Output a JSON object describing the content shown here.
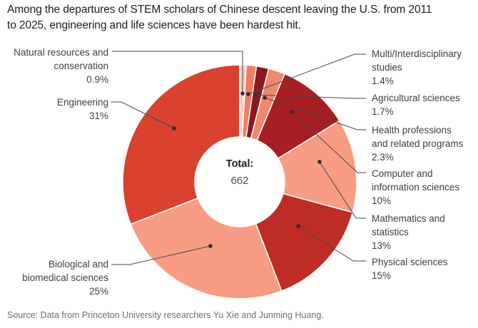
{
  "title_lines": [
    "Among the departures of STEM scholars of Chinese descent leaving the U.S. from 2011",
    "to 2025, engineering and life sciences have been hardest hit."
  ],
  "source": "Source: Data from Princeton University researchers Yu Xie and Junming Huang.",
  "colors": {
    "background": "#ffffff",
    "leader_line": "#4a4a4a",
    "dot": "#2f2f2f",
    "segment_separator": "#ffffff",
    "title_text": "#1d1d1d",
    "label_text": "#3f3f3f",
    "source_text": "#6f6f6f"
  },
  "chart_data": {
    "type": "pie",
    "subtype": "donut",
    "title": "Among the departures of STEM scholars of Chinese descent leaving the U.S. from 2011 to 2025, engineering and life sciences have been hardest hit.",
    "total_label": "Total:",
    "total_value": "662",
    "units": "percent of 662 total departures",
    "order": "clockwise from 12 o'clock",
    "legend_position": "callout labels with leader lines",
    "segments": [
      {
        "id": "natural-resources",
        "label_lines": [
          "Natural resources and",
          "conservation"
        ],
        "pct_label": "0.9%",
        "value": 0.9,
        "color": "#f6cdbf",
        "side": "left"
      },
      {
        "id": "multi-interdisciplinary",
        "label_lines": [
          "Multi/Interdisciplinary",
          "studies"
        ],
        "pct_label": "1.4%",
        "value": 1.4,
        "color": "#ee7f63",
        "side": "right"
      },
      {
        "id": "agricultural-sciences",
        "label_lines": [
          "Agricultural sciences"
        ],
        "pct_label": "1.7%",
        "value": 1.7,
        "color": "#8e171c",
        "side": "right"
      },
      {
        "id": "health-professions",
        "label_lines": [
          "Health professions",
          "and related programs"
        ],
        "pct_label": "2.3%",
        "value": 2.3,
        "color": "#f0886c",
        "side": "right"
      },
      {
        "id": "computer-information",
        "label_lines": [
          "Computer and",
          "information sciences"
        ],
        "pct_label": "10%",
        "value": 10,
        "color": "#a71e23",
        "side": "right"
      },
      {
        "id": "mathematics-statistics",
        "label_lines": [
          "Mathematics and",
          "statistics"
        ],
        "pct_label": "13%",
        "value": 13,
        "color": "#f89c83",
        "side": "right"
      },
      {
        "id": "physical-sciences",
        "label_lines": [
          "Physical sciences"
        ],
        "pct_label": "15%",
        "value": 15,
        "color": "#bd2d26",
        "side": "right"
      },
      {
        "id": "biological-biomedical",
        "label_lines": [
          "Biological and",
          "biomedical sciences"
        ],
        "pct_label": "25%",
        "value": 25,
        "color": "#f89c83",
        "side": "left"
      },
      {
        "id": "engineering",
        "label_lines": [
          "Engineering"
        ],
        "pct_label": "31%",
        "value": 31,
        "color": "#d8422f",
        "side": "left"
      }
    ]
  }
}
